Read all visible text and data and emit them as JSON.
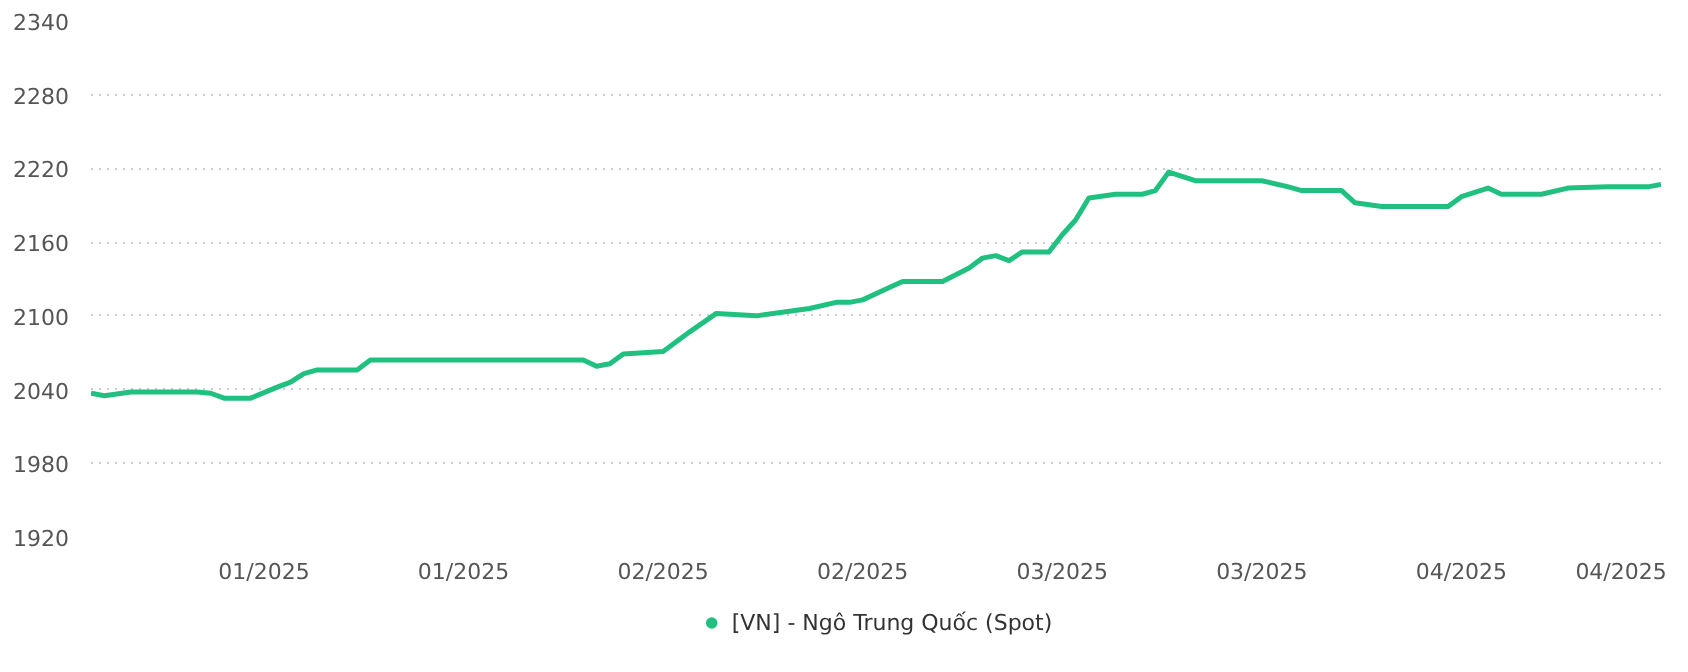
{
  "chart_data": {
    "type": "line",
    "x": [
      "2024-12-20",
      "2024-12-21",
      "2024-12-23",
      "2024-12-28",
      "2024-12-29",
      "2024-12-30",
      "2025-01-01",
      "2025-01-03",
      "2025-01-04",
      "2025-01-05",
      "2025-01-06",
      "2025-01-09",
      "2025-01-10",
      "2025-01-26",
      "2025-01-27",
      "2025-01-28",
      "2025-01-29",
      "2025-02-01",
      "2025-02-03",
      "2025-02-05",
      "2025-02-08",
      "2025-02-12",
      "2025-02-14",
      "2025-02-15",
      "2025-02-16",
      "2025-02-18",
      "2025-02-19",
      "2025-02-22",
      "2025-02-24",
      "2025-02-25",
      "2025-02-26",
      "2025-02-27",
      "2025-02-28",
      "2025-03-02",
      "2025-03-03",
      "2025-03-04",
      "2025-03-05",
      "2025-03-07",
      "2025-03-09",
      "2025-03-10",
      "2025-03-11",
      "2025-03-13",
      "2025-03-18",
      "2025-03-20",
      "2025-03-21",
      "2025-03-24",
      "2025-03-25",
      "2025-03-27",
      "2025-04-01",
      "2025-04-02",
      "2025-04-04",
      "2025-04-05",
      "2025-04-08",
      "2025-04-10",
      "2025-04-13",
      "2025-04-16",
      "2025-04-17"
    ],
    "series": [
      {
        "name": "[VN] - Ngô Trung Quốc (Spot)",
        "color": "#20c080",
        "values": [
          2037,
          2035,
          2038,
          2038,
          2037,
          2033,
          2033,
          2042,
          2046,
          2053,
          2056,
          2056,
          2064,
          2064,
          2059,
          2061,
          2069,
          2071,
          2087,
          2102,
          2100,
          2106,
          2111,
          2111,
          2113,
          2123,
          2128,
          2128,
          2139,
          2147,
          2149,
          2145,
          2152,
          2152,
          2166,
          2178,
          2196,
          2199,
          2199,
          2202,
          2217,
          2210,
          2210,
          2205,
          2202,
          2202,
          2192,
          2189,
          2189,
          2197,
          2204,
          2199,
          2199,
          2204,
          2205,
          2205,
          2207
        ]
      }
    ],
    "xlim": [
      "2024-12-20",
      "2025-04-17"
    ],
    "xticks": [
      {
        "value": "2025-01-02",
        "label": "01/2025"
      },
      {
        "value": "2025-01-17",
        "label": "01/2025"
      },
      {
        "value": "2025-02-01",
        "label": "02/2025"
      },
      {
        "value": "2025-02-16",
        "label": "02/2025"
      },
      {
        "value": "2025-03-03",
        "label": "03/2025"
      },
      {
        "value": "2025-03-18",
        "label": "03/2025"
      },
      {
        "value": "2025-04-02",
        "label": "04/2025"
      },
      {
        "value": "2025-04-14",
        "label": "04/2025"
      }
    ],
    "ylim": [
      1920,
      2340
    ],
    "yticks": [
      1920,
      1980,
      2040,
      2100,
      2160,
      2220,
      2280,
      2340
    ],
    "grid": "y",
    "legend": "bottom",
    "marker": "none",
    "line_style": "solid"
  }
}
